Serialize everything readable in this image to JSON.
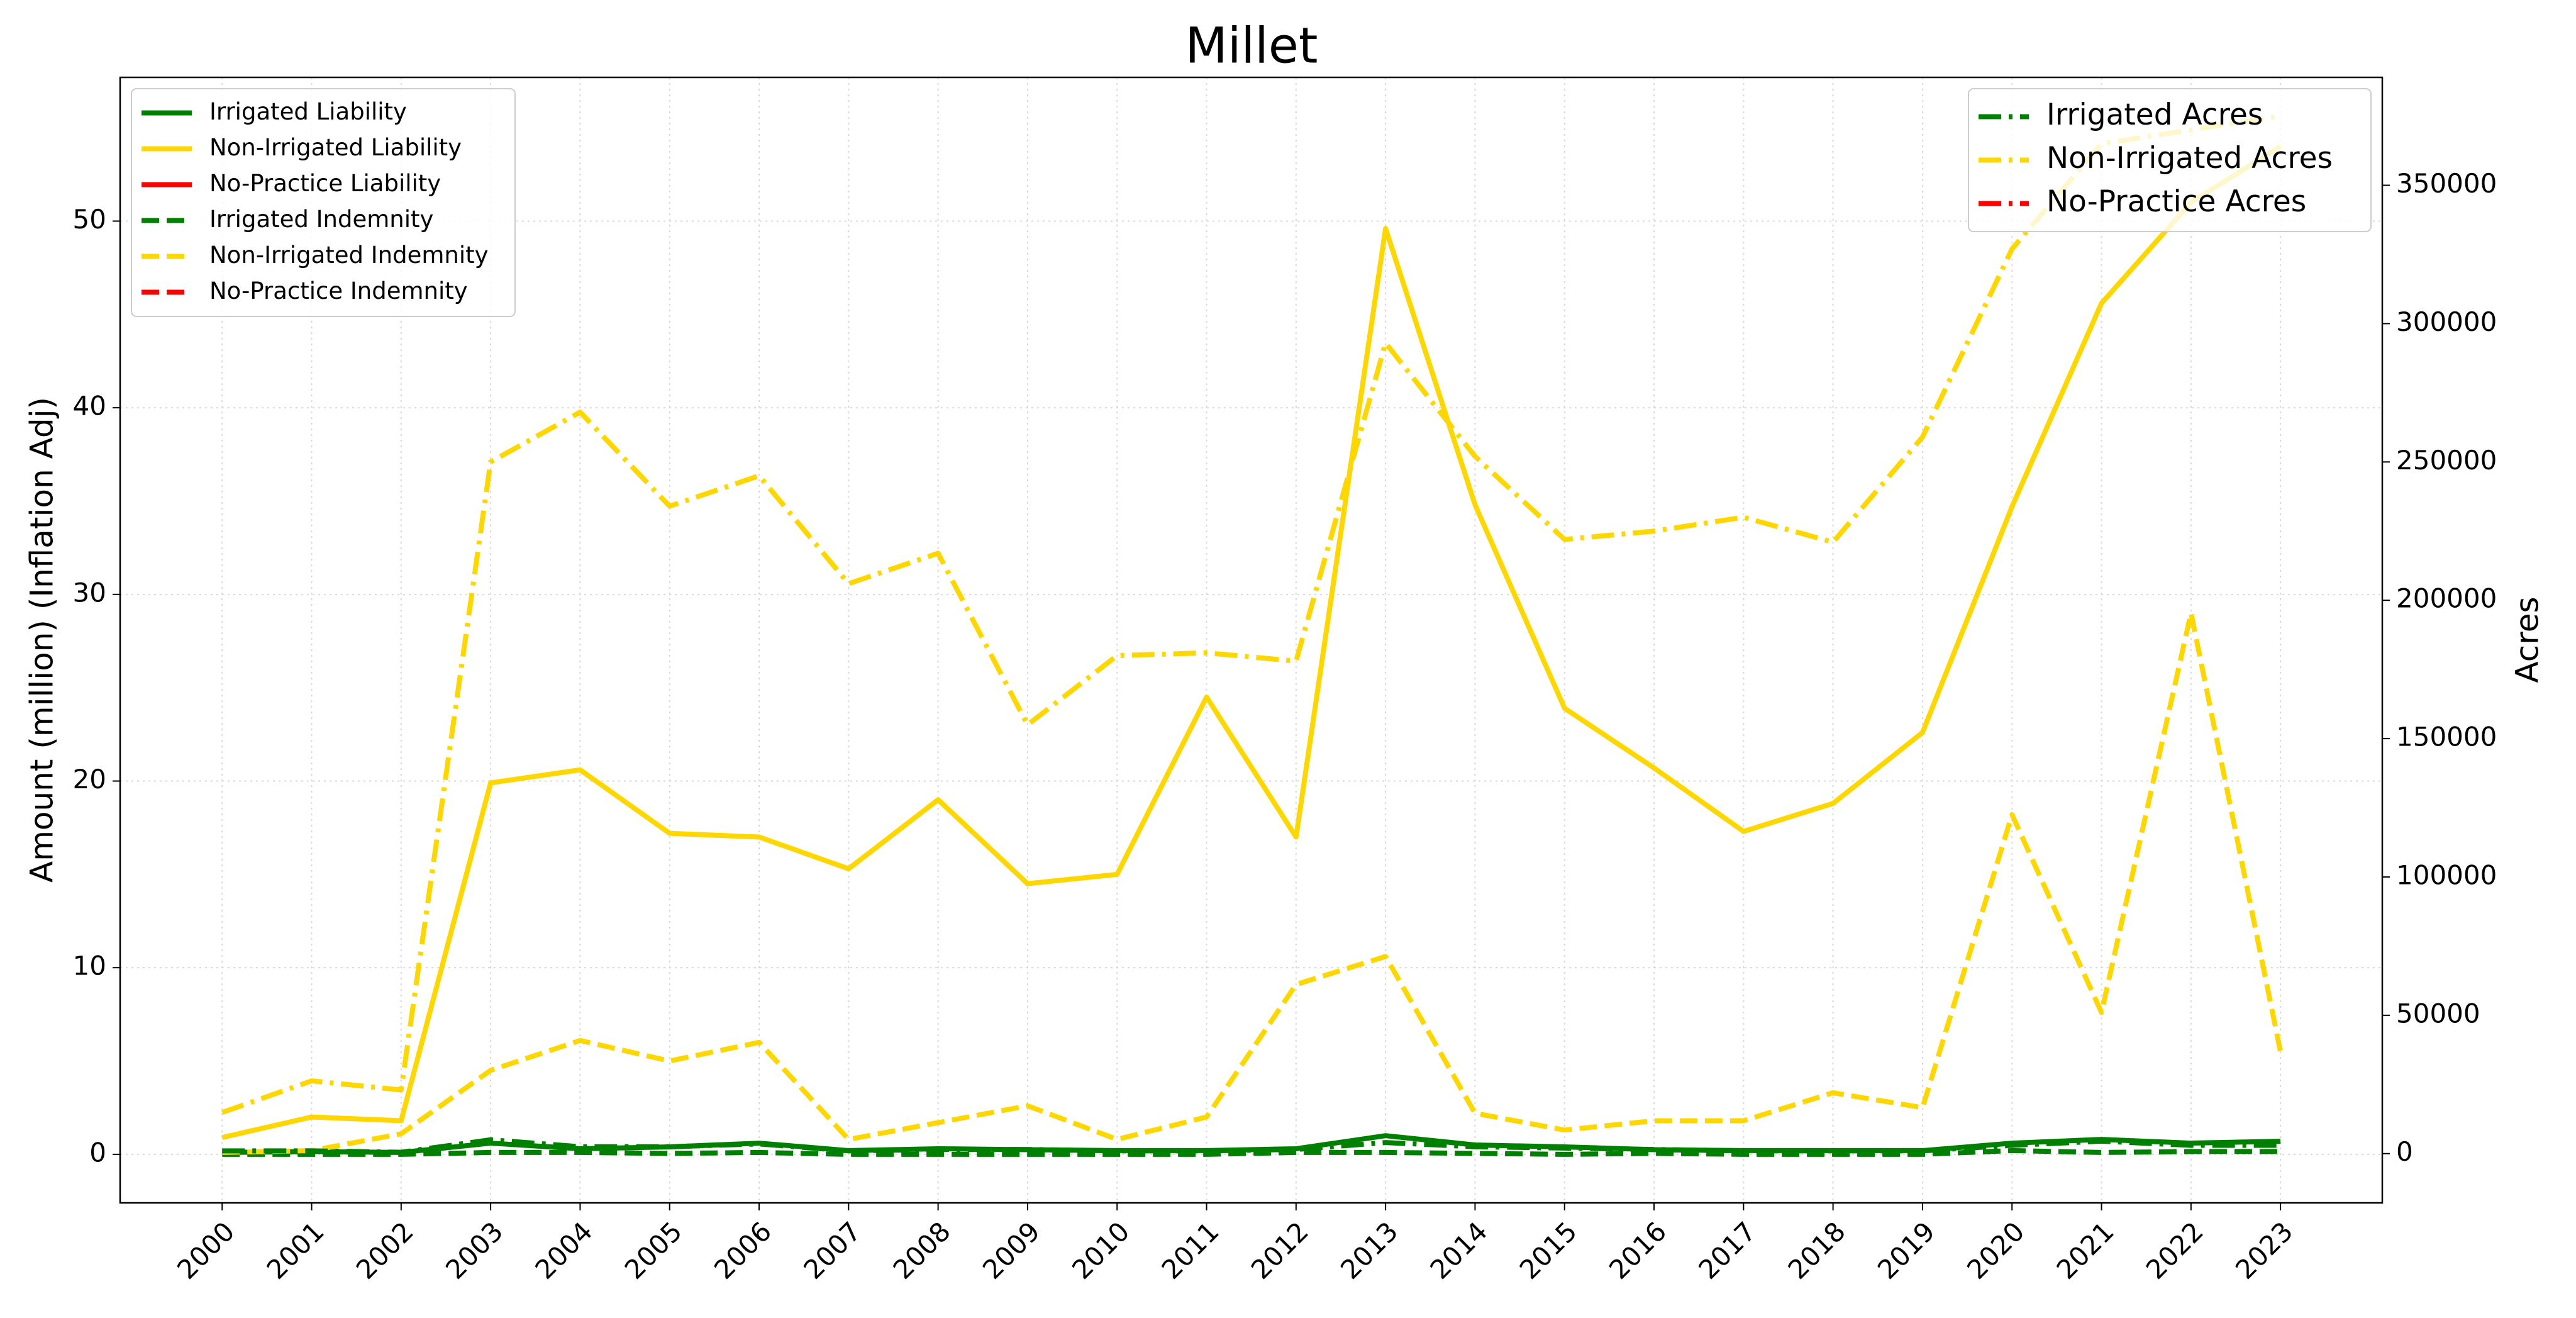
{
  "chart_data": {
    "type": "line",
    "title": "Millet",
    "y_label": "Amount (million) (Inflation Adj)",
    "y2_label": "Acres",
    "categories": [
      "2000",
      "2001",
      "2002",
      "2003",
      "2004",
      "2005",
      "2006",
      "2007",
      "2008",
      "2009",
      "2010",
      "2011",
      "2012",
      "2013",
      "2014",
      "2015",
      "2016",
      "2017",
      "2018",
      "2019",
      "2020",
      "2021",
      "2022",
      "2023"
    ],
    "ylim": [
      -2.6,
      57.7
    ],
    "yticks": [
      0,
      10,
      20,
      30,
      40,
      50
    ],
    "y2lim": [
      -17800,
      389000
    ],
    "y2ticks": [
      0,
      50000,
      100000,
      150000,
      200000,
      250000,
      300000,
      350000
    ],
    "grid": true,
    "legend": "upper left",
    "legend2": "upper right",
    "series": [
      {
        "name": "Irrigated Liability",
        "color": "#008000",
        "style": "solid",
        "values": [
          0.1,
          0.15,
          0.1,
          0.6,
          0.3,
          0.4,
          0.6,
          0.2,
          0.3,
          0.25,
          0.2,
          0.2,
          0.3,
          1.0,
          0.5,
          0.4,
          0.25,
          0.2,
          0.2,
          0.2,
          0.6,
          0.8,
          0.6,
          0.7
        ]
      },
      {
        "name": "Non-Irrigated Liability",
        "color": "#ffd700",
        "style": "solid",
        "values": [
          0.9,
          2.0,
          1.8,
          19.9,
          20.6,
          17.2,
          17.0,
          15.3,
          19.0,
          14.5,
          15.0,
          24.5,
          17.0,
          49.6,
          34.8,
          23.9,
          20.7,
          17.3,
          18.8,
          22.6,
          34.7,
          45.6,
          51.0,
          54.0
        ]
      },
      {
        "name": "No-Practice Liability",
        "color": "#ff0000",
        "style": "solid",
        "values": [
          null,
          null,
          null,
          null,
          null,
          null,
          null,
          null,
          null,
          null,
          null,
          null,
          null,
          null,
          null,
          null,
          null,
          null,
          null,
          null,
          null,
          null,
          null,
          null
        ]
      },
      {
        "name": "Irrigated Indemnity",
        "color": "#008000",
        "style": "dashed",
        "values": [
          0,
          0,
          0,
          0.1,
          0.1,
          0.05,
          0.1,
          0,
          0,
          0,
          0,
          0,
          0.1,
          0.1,
          0.05,
          0,
          0.05,
          0,
          0,
          0,
          0.2,
          0.1,
          0.15,
          0.15
        ]
      },
      {
        "name": "Non-Irrigated Indemnity",
        "color": "#ffd700",
        "style": "dashed",
        "values": [
          0.1,
          0.2,
          1.1,
          4.5,
          6.1,
          5.0,
          6.0,
          0.8,
          1.7,
          2.6,
          0.8,
          2.0,
          9.1,
          10.6,
          2.2,
          1.3,
          1.8,
          1.8,
          3.3,
          2.5,
          18.2,
          7.6,
          29.0,
          5.5
        ]
      },
      {
        "name": "No-Practice Indemnity",
        "color": "#ff0000",
        "style": "dashed",
        "values": [
          null,
          null,
          null,
          null,
          null,
          null,
          null,
          null,
          null,
          null,
          null,
          null,
          null,
          null,
          null,
          null,
          null,
          null,
          null,
          null,
          null,
          null,
          null,
          null
        ]
      },
      {
        "name": "Irrigated Acres",
        "color": "#008000",
        "style": "dashdot",
        "axis": "y2",
        "values": [
          1000,
          1000,
          500,
          5000,
          2500,
          2500,
          3500,
          1000,
          1500,
          1500,
          1000,
          1000,
          1500,
          4000,
          2500,
          2000,
          1500,
          1000,
          1000,
          1000,
          3000,
          4500,
          3000,
          3000
        ]
      },
      {
        "name": "Non-Irrigated Acres",
        "color": "#ffd700",
        "style": "dashdot",
        "axis": "y2",
        "values": [
          14850,
          26300,
          23000,
          250000,
          268000,
          234000,
          245000,
          206000,
          217000,
          155000,
          180000,
          181000,
          178000,
          293000,
          252000,
          222000,
          225000,
          230000,
          221000,
          259000,
          327000,
          365000,
          370000,
          375000
        ]
      },
      {
        "name": "No-Practice Acres",
        "color": "#ff0000",
        "style": "dashdot",
        "axis": "y2",
        "values": [
          null,
          null,
          null,
          null,
          null,
          null,
          null,
          null,
          null,
          null,
          null,
          null,
          null,
          null,
          null,
          null,
          null,
          null,
          null,
          null,
          null,
          null,
          null,
          null
        ]
      }
    ]
  }
}
